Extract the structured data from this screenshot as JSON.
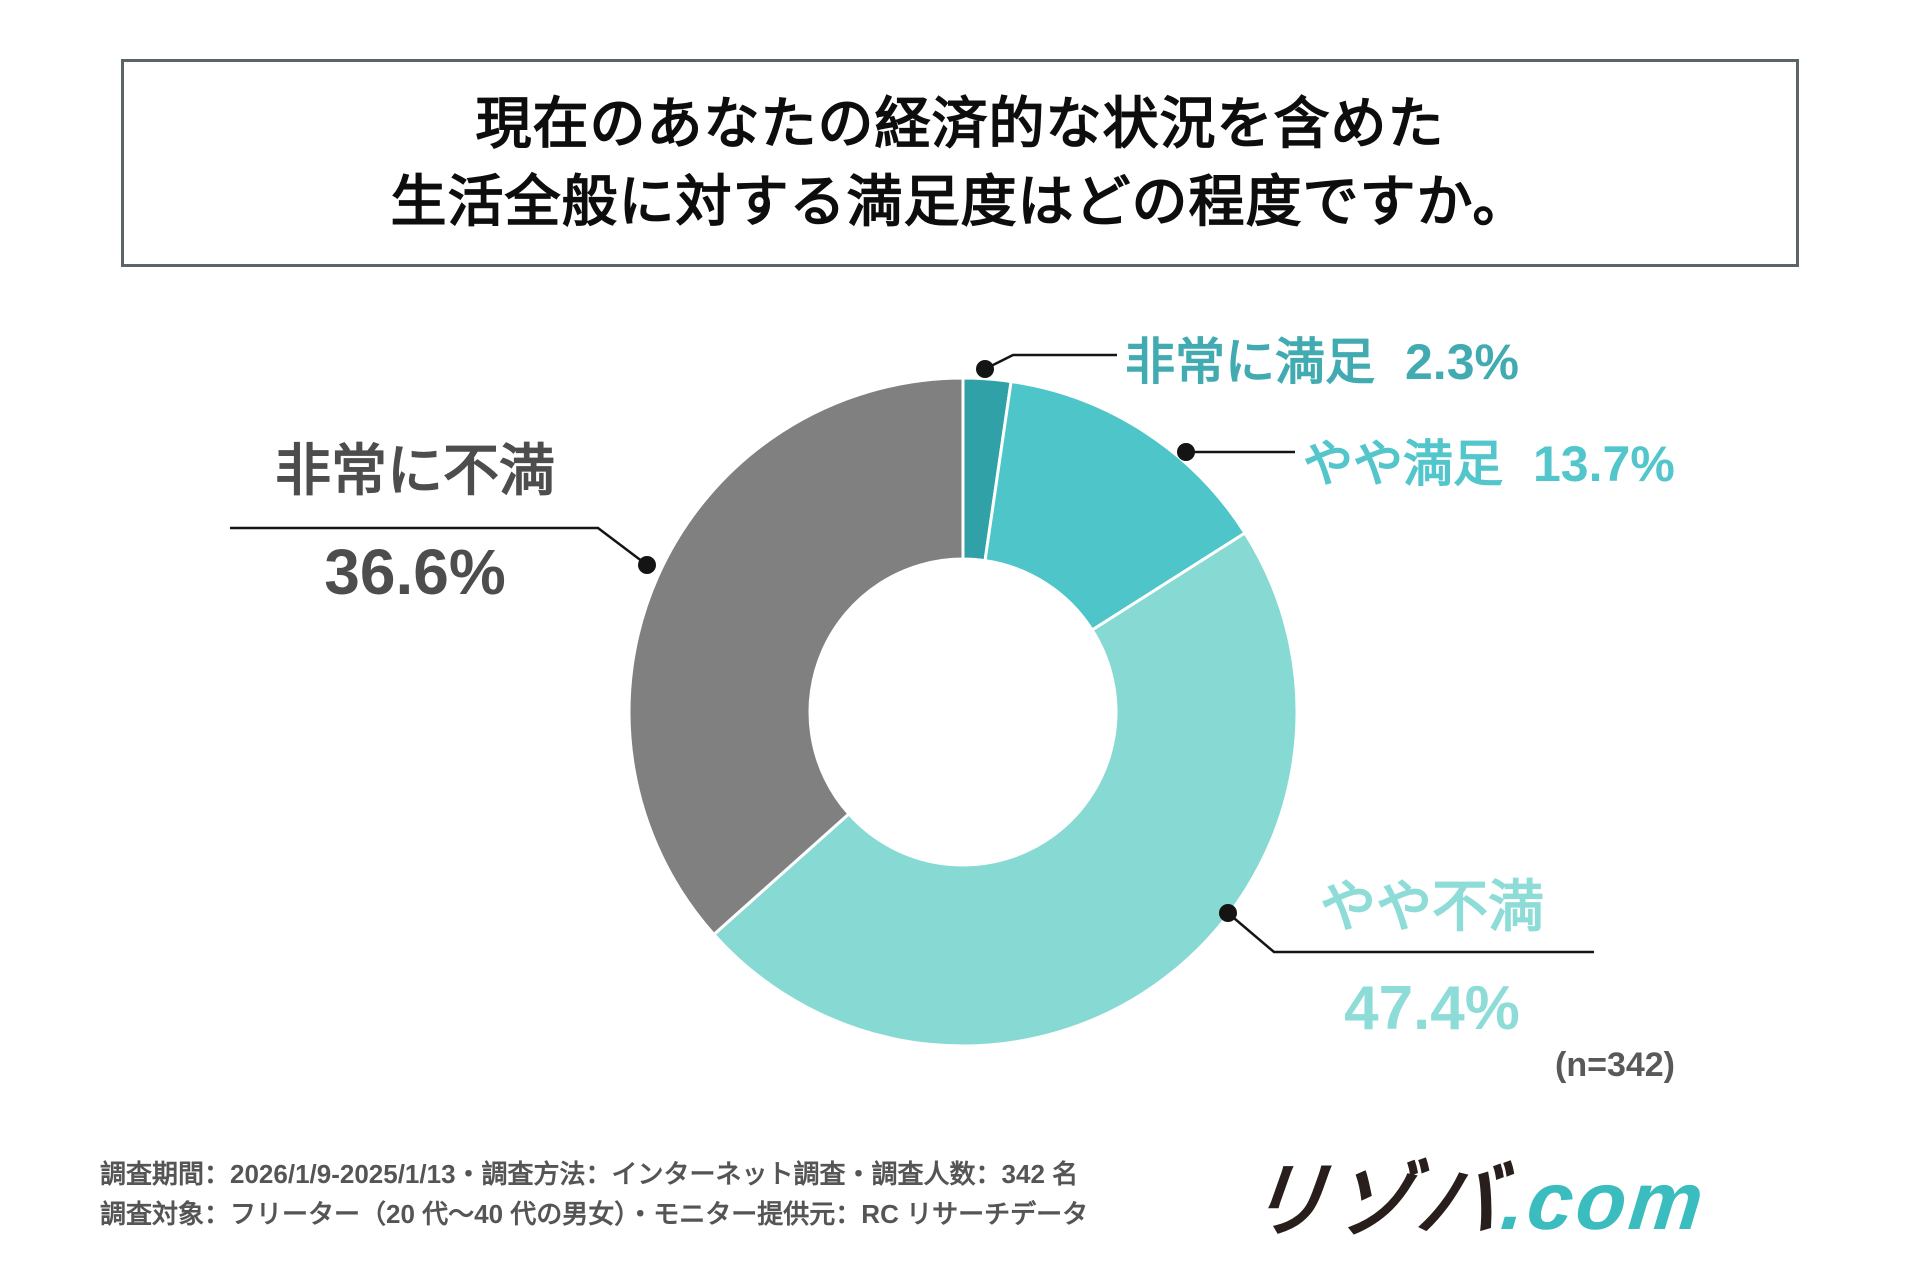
{
  "title": {
    "line1": "現在のあなたの経済的な状況を含めた",
    "line2": "生活全般に対する満足度はどの程度ですか。"
  },
  "chart_data": {
    "type": "pie",
    "subtype": "donut",
    "title": "現在のあなたの経済的な状況を含めた生活全般に対する満足度はどの程度ですか。",
    "categories": [
      "非常に満足",
      "やや満足",
      "やや不満",
      "非常に不満"
    ],
    "values": [
      2.3,
      13.7,
      47.4,
      36.6
    ],
    "unit": "%",
    "colors": [
      "#2fa1a7",
      "#4dc5c9",
      "#87d9d4",
      "#808080"
    ],
    "label_colors": [
      "#42abb1",
      "#52c6ca",
      "#8edcd7",
      "#4d4d4d"
    ],
    "start_angle": "12 o'clock, clockwise",
    "legend_position": "callout labels with leader lines",
    "sample_note": "(n=342)"
  },
  "labels": {
    "very_satisfied": {
      "name": "非常に満足",
      "value": "2.3%"
    },
    "somewhat_satisfied": {
      "name": "やや満足",
      "value": "13.7%"
    },
    "somewhat_dissatisfied": {
      "name": "やや不満",
      "value": "47.4%"
    },
    "very_dissatisfied": {
      "name": "非常に不満",
      "value": "36.6%"
    }
  },
  "footer": {
    "line1": "調査期間：2026/1/9-2025/1/13・調査方法：インターネット調査・調査人数：342 名",
    "line2": "調査対象：フリーター（20 代〜40 代の男女）・モニター提供元：RC リサーチデータ"
  },
  "logo": {
    "black": "リゾバ",
    "teal": ".com",
    "teal_color": "#3bbcbf"
  }
}
